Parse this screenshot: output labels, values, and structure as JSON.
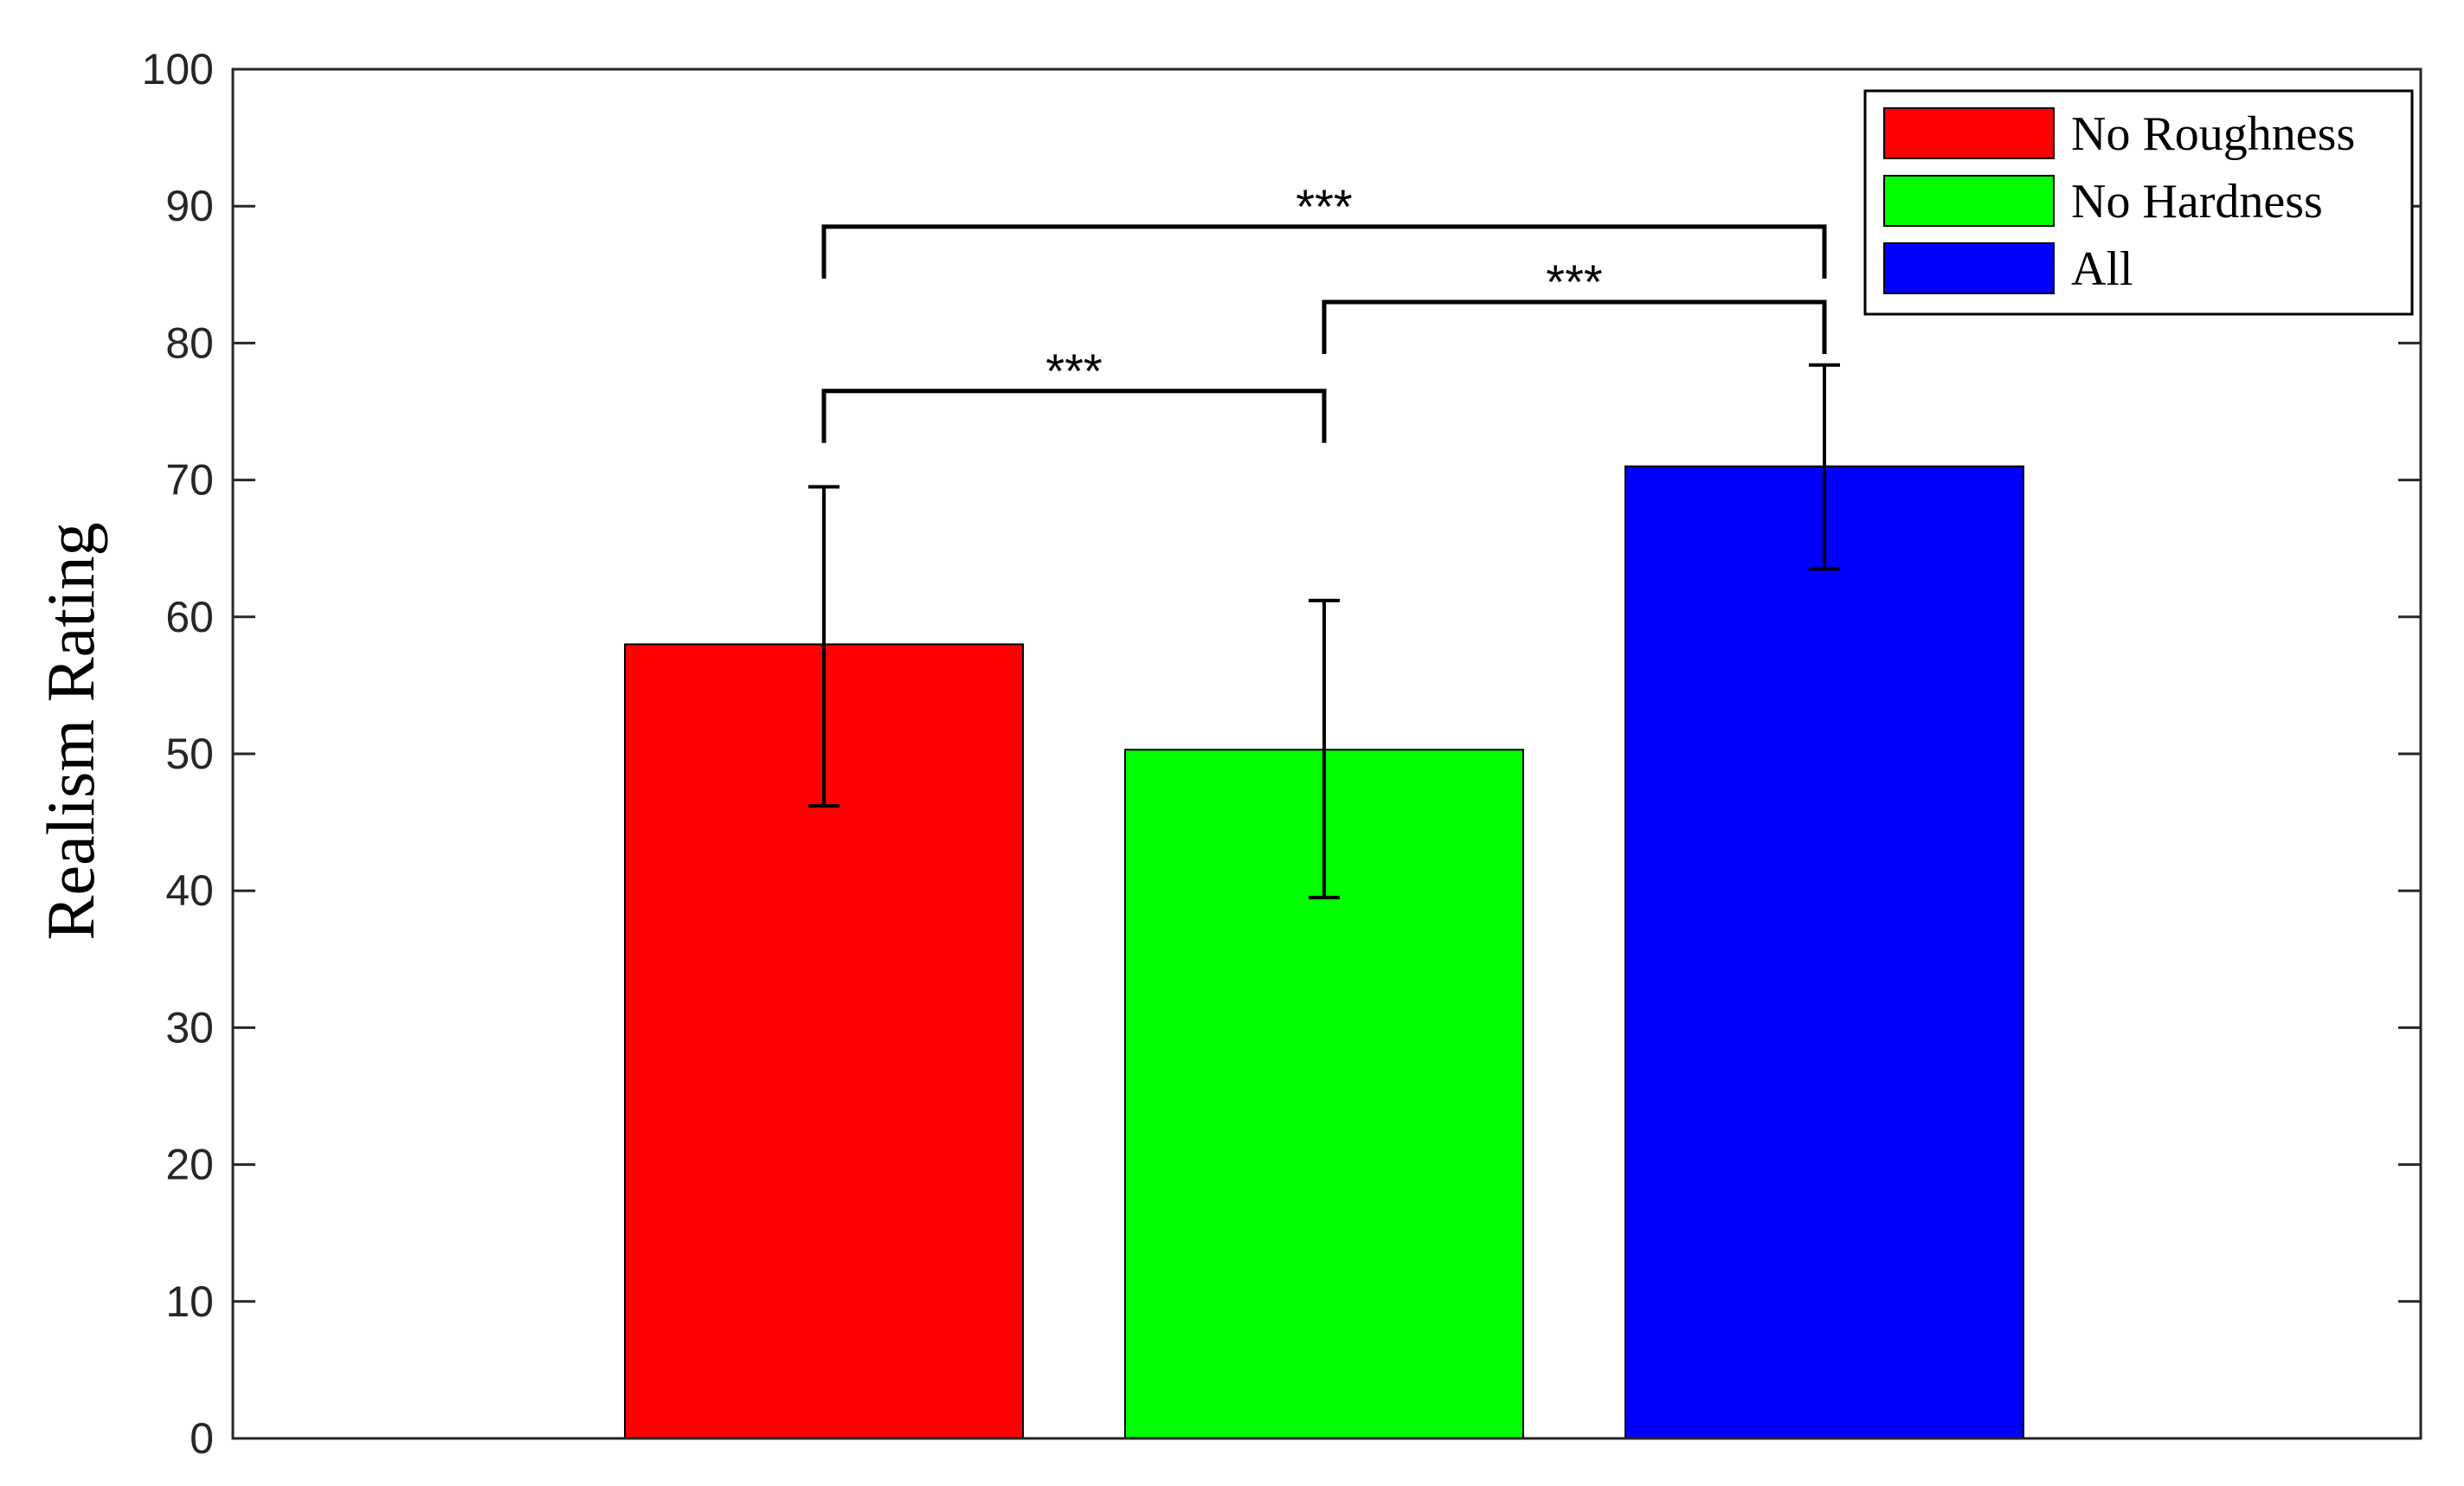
{
  "chart_data": {
    "type": "bar",
    "title": "",
    "xlabel": "",
    "ylabel": "Realism Rating",
    "ylim": [
      0,
      100
    ],
    "yticks": [
      0,
      10,
      20,
      30,
      40,
      50,
      60,
      70,
      80,
      90,
      100
    ],
    "grid": false,
    "legend_position": "top-right",
    "series": [
      {
        "name": "No Roughness",
        "value": 58,
        "error_low": 46.2,
        "error_high": 69.5,
        "color": "#ff0000"
      },
      {
        "name": "No Hardness",
        "value": 50.3,
        "error_low": 39.5,
        "error_high": 61.2,
        "color": "#00ff00"
      },
      {
        "name": "All",
        "value": 71,
        "error_low": 63.5,
        "error_high": 78.4,
        "color": "#0000ff"
      }
    ],
    "significance": [
      {
        "from": 0,
        "to": 1,
        "label": "***",
        "level": 76.5
      },
      {
        "from": 1,
        "to": 2,
        "label": "***",
        "level": 83
      },
      {
        "from": 0,
        "to": 2,
        "label": "***",
        "level": 88.5
      }
    ]
  }
}
